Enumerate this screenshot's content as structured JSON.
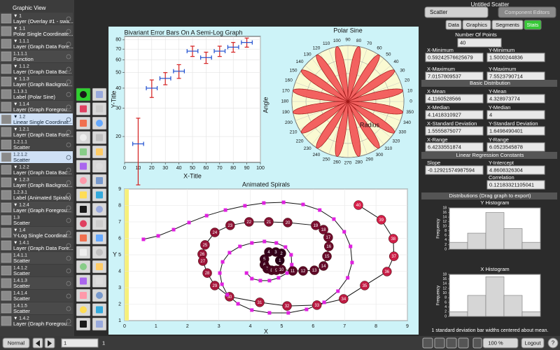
{
  "sidebar": {
    "title": "Graphic View",
    "items": [
      {
        "id": "▼ 1",
        "label": "Layer (Overlay #1 - swa..."
      },
      {
        "id": "▼ 1.1",
        "label": "Polar Single Coordinate..."
      },
      {
        "id": "▼ 1.1.1",
        "label": "Layer (Graph Data Fore..."
      },
      {
        "id": "1.1.1.1",
        "label": "Function"
      },
      {
        "id": "▼ 1.1.2",
        "label": "Layer (Graph Data Bac..."
      },
      {
        "id": "▼ 1.1.3",
        "label": "Layer (Graph Backgrou..."
      },
      {
        "id": "1.1.3.1",
        "label": "Label (Polar Sine)"
      },
      {
        "id": "▼ 1.1.4",
        "label": "Layer (Graph Foregrou..."
      },
      {
        "id": "▼ 1.2",
        "label": "Linear Single Coordinat...",
        "selected": true
      },
      {
        "id": "▼ 1.2.1",
        "label": "Layer (Graph Data Fore..."
      },
      {
        "id": "1.2.1.1",
        "label": "Scatter"
      },
      {
        "id": "1.2.1.2",
        "label": "Scatter",
        "selected": true
      },
      {
        "id": "▼ 1.2.2",
        "label": "Layer (Graph Data Bac..."
      },
      {
        "id": "▼ 1.2.3",
        "label": "Layer (Graph Backgrou..."
      },
      {
        "id": "1.2.3.1",
        "label": "Label (Animated Spirals)"
      },
      {
        "id": "▼ 1.2.4",
        "label": "Layer (Graph Foregrou..."
      },
      {
        "id": "1.3",
        "label": "Scatter"
      },
      {
        "id": "▼ 1.4",
        "label": "Y-Log Single Coordinat..."
      },
      {
        "id": "▼ 1.4.1",
        "label": "Layer (Graph Data Fore..."
      },
      {
        "id": "1.4.1.1",
        "label": "Scatter"
      },
      {
        "id": "1.4.1.2",
        "label": "Scatter"
      },
      {
        "id": "1.4.1.3",
        "label": "Scatter"
      },
      {
        "id": "1.4.1.4",
        "label": "Scatter"
      },
      {
        "id": "1.4.1.5",
        "label": "Scatter"
      },
      {
        "id": "▼ 1.4.2",
        "label": "Layer (Graph Foregrou..."
      }
    ]
  },
  "error_bar_graph": {
    "title": "Bivariant Error Bars On A Semi-Log Graph",
    "x_label": "X-Title",
    "y_label": "Y-Title",
    "x": [
      10,
      20,
      30,
      40,
      50,
      60,
      70,
      80,
      90
    ],
    "y": [
      18,
      40,
      46,
      51,
      68,
      62,
      68,
      72,
      77
    ],
    "x_error": [
      4,
      4,
      4,
      4,
      4,
      4,
      4,
      4,
      4
    ],
    "y_error": [
      8,
      5,
      4,
      5,
      5,
      5,
      5,
      5,
      5
    ],
    "x_error_color": "#1f4fd0",
    "y_error_color": "#d42020",
    "xlim": [
      0,
      100
    ],
    "ylim": [
      13.8,
      84
    ],
    "log_y": true,
    "grid": true,
    "xticks": [
      0,
      10,
      20,
      30,
      40,
      50,
      60,
      70,
      80,
      90,
      100
    ],
    "yticks": [
      20,
      30,
      40,
      50,
      60,
      70,
      80
    ]
  },
  "polar_graph": {
    "title": "Polar Sine",
    "angle_label": "Angle",
    "radius_label": "Radius",
    "petals": 16,
    "rlim": [
      0,
      1
    ],
    "rticks": [
      0.25,
      0.5,
      0.75,
      1
    ],
    "color": "#f25a5a",
    "angle_ticks": [
      0,
      10,
      20,
      30,
      40,
      50,
      60,
      70,
      80,
      90,
      100,
      110,
      120,
      130,
      140,
      150,
      160,
      170,
      180,
      190,
      200,
      210,
      220,
      230,
      240,
      250,
      260,
      270,
      280,
      290,
      300,
      310,
      320,
      330,
      340,
      350
    ]
  },
  "spiral_graph": {
    "title": "Animated Spirals",
    "x_label": "X",
    "y_label": "Y",
    "xlim": [
      0,
      9
    ],
    "ylim": [
      1,
      9
    ],
    "grid": true,
    "xticks": [
      0,
      1,
      2,
      3,
      4,
      5,
      6,
      7,
      8,
      9
    ],
    "yticks": [
      1,
      2,
      3,
      4,
      5,
      6,
      7,
      8,
      9
    ],
    "series": [
      {
        "marker": "ball",
        "colors": [
          "#2a0018",
          "#d8204a"
        ],
        "x": [
          4.94,
          4.99,
          4.81,
          4.59,
          4.45,
          4.45,
          4.54,
          4.68,
          4.83,
          4.99,
          5.35,
          5.68,
          6.04,
          6.33,
          6.44,
          6.5,
          6.48,
          6.33,
          6.08,
          5.19,
          4.59,
          3.96,
          3.36,
          2.87,
          2.56,
          2.47,
          2.49,
          2.63,
          2.87,
          3.34,
          4.3,
          5.17,
          6.12,
          6.97,
          7.64,
          8.35,
          8.57,
          8.55,
          8.17,
          7.44
        ],
        "y": [
          4.66,
          5.09,
          5.17,
          5.17,
          4.74,
          4.4,
          4.15,
          4.06,
          4.06,
          4.11,
          4.02,
          4.02,
          4.06,
          4.32,
          4.91,
          5.51,
          6.06,
          6.53,
          6.79,
          6.96,
          7,
          7,
          6.79,
          6.36,
          5.6,
          5.04,
          4.62,
          3.89,
          3.13,
          2.45,
          2.11,
          1.89,
          1.94,
          2.32,
          3.13,
          3.98,
          4.91,
          5.98,
          7.13,
          8.02
        ],
        "labels": [
          "1",
          "2",
          "3",
          "4",
          "5",
          "6",
          "7",
          "8",
          "9",
          "10",
          "11",
          "12",
          "13",
          "14",
          "15",
          "16",
          "17",
          "18",
          "19",
          "20",
          "21",
          "22",
          "23",
          "24",
          "25",
          "26",
          "27",
          "28",
          "29",
          "30",
          "31",
          "32",
          "33",
          "34",
          "35",
          "36",
          "37",
          "38",
          "39",
          "40"
        ]
      },
      {
        "marker": "square",
        "color": "#e020e0",
        "x": [
          3.88,
          4.05,
          4.32,
          4.61,
          4.9,
          5.17,
          5.32,
          5.3,
          5.12,
          4.83,
          4.45,
          4.05,
          3.67,
          3.34,
          3.12,
          3.03,
          3.1,
          3.27,
          3.61,
          4.05,
          4.61,
          5.21,
          5.79,
          6.35,
          6.79,
          7.1,
          7.24,
          7.19,
          6.99,
          6.66,
          6.21,
          5.68,
          5.06,
          4.43,
          3.83,
          3.21,
          2.61,
          2.05,
          1.56,
          1.07,
          0.6
        ],
        "y": [
          3.89,
          3.55,
          3.43,
          3.43,
          3.6,
          3.89,
          4.4,
          5,
          5.47,
          5.72,
          5.81,
          5.72,
          5.51,
          5.13,
          4.57,
          3.89,
          3.21,
          2.57,
          2.02,
          1.64,
          1.47,
          1.47,
          1.68,
          2.11,
          2.79,
          3.6,
          4.53,
          5.51,
          6.4,
          7.17,
          7.72,
          8.06,
          8.19,
          8.15,
          7.98,
          7.72,
          7.38,
          6.96,
          6.53,
          6.15,
          5.94
        ]
      }
    ]
  },
  "inspector": {
    "title": "Untitled Scatter",
    "type_menu": "Scatter",
    "editors_menu": "Component Editors",
    "tabs": [
      "Data",
      "Graphics",
      "Segments",
      "Stats"
    ],
    "active_tab": 3,
    "number_of_points": {
      "label": "Number Of Points",
      "value": 40
    },
    "extremes": [
      [
        {
          "label": "X-Minimum",
          "value": 0.59242576625679
        },
        {
          "label": "Y-Minimum",
          "value": 1.5000244836
        }
      ],
      [
        {
          "label": "X-Maximum",
          "value": 7.0157809537
        },
        {
          "label": "Y-Maximum",
          "value": 7.5523790714
        }
      ]
    ],
    "distribution": {
      "title": "Basic Distribution",
      "rows": [
        [
          {
            "label": "X-Mean",
            "value": 4.1160528566
          },
          {
            "label": "Y-Mean",
            "value": 4.328973774
          }
        ],
        [
          {
            "label": "X-Median",
            "value": 4.1418310927
          },
          {
            "label": "Y-Median",
            "value": 4
          }
        ],
        [
          {
            "label": "X-Standard Deviation",
            "value": 1.5555875077
          },
          {
            "label": "Y-Standard Deviation",
            "value": 1.6498490401
          }
        ],
        [
          {
            "label": "X-Range",
            "value": 6.4233551874
          },
          {
            "label": "Y-Range",
            "value": 6.0523545878
          }
        ]
      ]
    },
    "regression": {
      "title": "Linear Regression Constants",
      "rows": [
        [
          {
            "label": "Slope",
            "value": -0.12921574987594
          },
          {
            "label": "Y-Intercept",
            "value": 4.8608326304
          }
        ],
        [
          {
            "label": "Correlation",
            "value": 0.12183321105041
          }
        ]
      ]
    },
    "distributions": {
      "title": "Distributions (Drag graph to export)",
      "histograms": [
        {
          "title": "Y Histogram",
          "y_label": "Frequency",
          "values": [
            3,
            7,
            16,
            9,
            3
          ],
          "ylim": [
            0,
            18
          ],
          "yticks": [
            0,
            2,
            4,
            6,
            8,
            10,
            12,
            14,
            16,
            18
          ],
          "color": "#d6d6d6"
        },
        {
          "title": "X Histogram",
          "y_label": "Frequency",
          "values": [
            2,
            9,
            17,
            9,
            2
          ],
          "ylim": [
            0,
            18
          ],
          "yticks": [
            0,
            2,
            4,
            6,
            8,
            10,
            12,
            14,
            16,
            18
          ],
          "color": "#d6d6d6"
        }
      ],
      "note": "1 standard deviation bar widths centered about mean."
    }
  },
  "toolbar": {
    "mode": "Normal",
    "page_field": 1,
    "page_count": 1,
    "zoom": "100 %",
    "logout": "Logout",
    "help": "?"
  }
}
